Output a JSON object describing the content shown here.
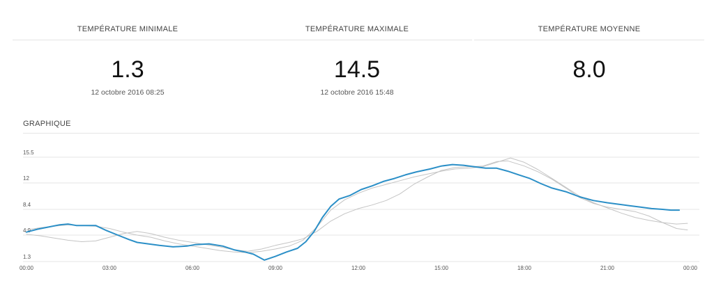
{
  "stats": [
    {
      "title": "TEMPÉRATURE MINIMALE",
      "value": "1.3",
      "date": "12 octobre 2016 08:25"
    },
    {
      "title": "TEMPÉRATURE MAXIMALE",
      "value": "14.5",
      "date": "12 octobre 2016 15:48"
    },
    {
      "title": "TEMPÉRATURE MOYENNE",
      "value": "8.0",
      "date": ""
    }
  ],
  "graph": {
    "title": "GRAPHIQUE"
  },
  "chart_data": {
    "type": "line",
    "xlabel": "",
    "ylabel": "",
    "x_ticks": [
      "00:00",
      "03:00",
      "06:00",
      "09:00",
      "12:00",
      "15:00",
      "18:00",
      "21:00",
      "00:00"
    ],
    "y_ticks": [
      1.3,
      4.9,
      8.4,
      12,
      15.5
    ],
    "xlim": [
      0,
      24
    ],
    "ylim": [
      1.3,
      15.5
    ],
    "grid": true,
    "colors": {
      "main": "#2b8fc7",
      "others": "#c4c4c4",
      "grid": "#e6e6e6"
    },
    "series": [
      {
        "role": "main",
        "points": [
          [
            0,
            5.3
          ],
          [
            0.4,
            5.7
          ],
          [
            0.8,
            6.0
          ],
          [
            1.2,
            6.3
          ],
          [
            1.5,
            6.4
          ],
          [
            1.8,
            6.2
          ],
          [
            2.2,
            6.2
          ],
          [
            2.5,
            6.2
          ],
          [
            2.9,
            5.5
          ],
          [
            3.3,
            4.9
          ],
          [
            3.7,
            4.3
          ],
          [
            4.0,
            3.9
          ],
          [
            4.4,
            3.7
          ],
          [
            4.8,
            3.5
          ],
          [
            5.3,
            3.3
          ],
          [
            5.8,
            3.4
          ],
          [
            6.1,
            3.6
          ],
          [
            6.6,
            3.7
          ],
          [
            7.1,
            3.4
          ],
          [
            7.5,
            2.9
          ],
          [
            7.9,
            2.6
          ],
          [
            8.2,
            2.3
          ],
          [
            8.6,
            1.5
          ],
          [
            9.0,
            2.0
          ],
          [
            9.4,
            2.6
          ],
          [
            9.8,
            3.1
          ],
          [
            10.1,
            4.0
          ],
          [
            10.4,
            5.4
          ],
          [
            10.7,
            7.3
          ],
          [
            11.0,
            8.8
          ],
          [
            11.3,
            9.8
          ],
          [
            11.7,
            10.3
          ],
          [
            12.1,
            11.1
          ],
          [
            12.5,
            11.6
          ],
          [
            12.9,
            12.2
          ],
          [
            13.3,
            12.6
          ],
          [
            13.7,
            13.1
          ],
          [
            14.1,
            13.5
          ],
          [
            14.6,
            13.9
          ],
          [
            15.0,
            14.3
          ],
          [
            15.4,
            14.5
          ],
          [
            15.8,
            14.4
          ],
          [
            16.2,
            14.2
          ],
          [
            16.6,
            14.0
          ],
          [
            17.0,
            14.0
          ],
          [
            17.4,
            13.6
          ],
          [
            17.8,
            13.1
          ],
          [
            18.2,
            12.6
          ],
          [
            18.6,
            11.9
          ],
          [
            19.0,
            11.3
          ],
          [
            19.5,
            10.8
          ],
          [
            20.0,
            10.1
          ],
          [
            20.5,
            9.6
          ],
          [
            21.0,
            9.3
          ],
          [
            21.4,
            9.1
          ],
          [
            21.8,
            8.9
          ],
          [
            22.2,
            8.7
          ],
          [
            22.6,
            8.5
          ],
          [
            23.0,
            8.4
          ],
          [
            23.3,
            8.3
          ],
          [
            23.6,
            8.3
          ]
        ]
      },
      {
        "role": "other",
        "points": [
          [
            0,
            5.0
          ],
          [
            0.5,
            4.8
          ],
          [
            1.0,
            4.5
          ],
          [
            1.5,
            4.2
          ],
          [
            2.0,
            4.0
          ],
          [
            2.5,
            4.1
          ],
          [
            3.0,
            4.6
          ],
          [
            3.5,
            5.1
          ],
          [
            4.0,
            5.4
          ],
          [
            4.5,
            5.1
          ],
          [
            5.0,
            4.6
          ],
          [
            5.5,
            4.2
          ],
          [
            6.0,
            3.9
          ],
          [
            6.5,
            3.6
          ],
          [
            7.0,
            3.3
          ],
          [
            7.5,
            2.9
          ],
          [
            8.0,
            2.7
          ],
          [
            8.5,
            3.0
          ],
          [
            9.0,
            3.5
          ],
          [
            9.5,
            3.9
          ],
          [
            10.0,
            4.4
          ],
          [
            10.5,
            5.4
          ],
          [
            11.0,
            6.8
          ],
          [
            11.5,
            7.8
          ],
          [
            12.0,
            8.5
          ],
          [
            12.5,
            9.0
          ],
          [
            13.0,
            9.6
          ],
          [
            13.5,
            10.5
          ],
          [
            14.0,
            11.8
          ],
          [
            14.5,
            12.8
          ],
          [
            15.0,
            13.7
          ],
          [
            15.5,
            14.1
          ],
          [
            16.0,
            14.2
          ],
          [
            16.5,
            14.3
          ],
          [
            17.0,
            14.9
          ],
          [
            17.4,
            15.0
          ],
          [
            18.0,
            14.3
          ],
          [
            18.5,
            13.5
          ],
          [
            19.0,
            12.5
          ],
          [
            19.5,
            11.3
          ],
          [
            20.0,
            10.0
          ],
          [
            20.5,
            9.2
          ],
          [
            21.0,
            8.7
          ],
          [
            21.5,
            8.4
          ],
          [
            22.0,
            8.1
          ],
          [
            22.5,
            7.5
          ],
          [
            23.0,
            6.6
          ],
          [
            23.5,
            5.8
          ],
          [
            23.9,
            5.6
          ]
        ]
      },
      {
        "role": "other",
        "points": [
          [
            0,
            5.6
          ],
          [
            0.5,
            5.9
          ],
          [
            1.0,
            6.1
          ],
          [
            1.5,
            6.3
          ],
          [
            2.0,
            6.2
          ],
          [
            2.5,
            6.1
          ],
          [
            3.0,
            5.8
          ],
          [
            3.5,
            5.3
          ],
          [
            4.0,
            4.9
          ],
          [
            4.5,
            4.6
          ],
          [
            5.0,
            4.1
          ],
          [
            5.5,
            3.7
          ],
          [
            6.0,
            3.4
          ],
          [
            6.5,
            3.1
          ],
          [
            7.0,
            2.8
          ],
          [
            7.5,
            2.6
          ],
          [
            8.0,
            2.5
          ],
          [
            8.5,
            2.7
          ],
          [
            9.0,
            3.0
          ],
          [
            9.5,
            3.4
          ],
          [
            10.0,
            4.2
          ],
          [
            10.5,
            6.0
          ],
          [
            11.0,
            8.3
          ],
          [
            11.5,
            9.7
          ],
          [
            12.0,
            10.6
          ],
          [
            12.5,
            11.3
          ],
          [
            13.0,
            11.8
          ],
          [
            13.5,
            12.3
          ],
          [
            14.0,
            12.8
          ],
          [
            14.5,
            13.2
          ],
          [
            15.0,
            13.6
          ],
          [
            15.5,
            13.9
          ],
          [
            16.0,
            14.0
          ],
          [
            16.5,
            14.2
          ],
          [
            17.0,
            14.8
          ],
          [
            17.5,
            15.4
          ],
          [
            18.0,
            14.8
          ],
          [
            18.5,
            13.8
          ],
          [
            19.0,
            12.6
          ],
          [
            19.5,
            11.4
          ],
          [
            20.0,
            10.2
          ],
          [
            20.5,
            9.3
          ],
          [
            21.0,
            8.6
          ],
          [
            21.5,
            7.9
          ],
          [
            22.0,
            7.3
          ],
          [
            22.5,
            6.9
          ],
          [
            23.0,
            6.6
          ],
          [
            23.5,
            6.4
          ],
          [
            23.9,
            6.5
          ]
        ]
      }
    ]
  }
}
